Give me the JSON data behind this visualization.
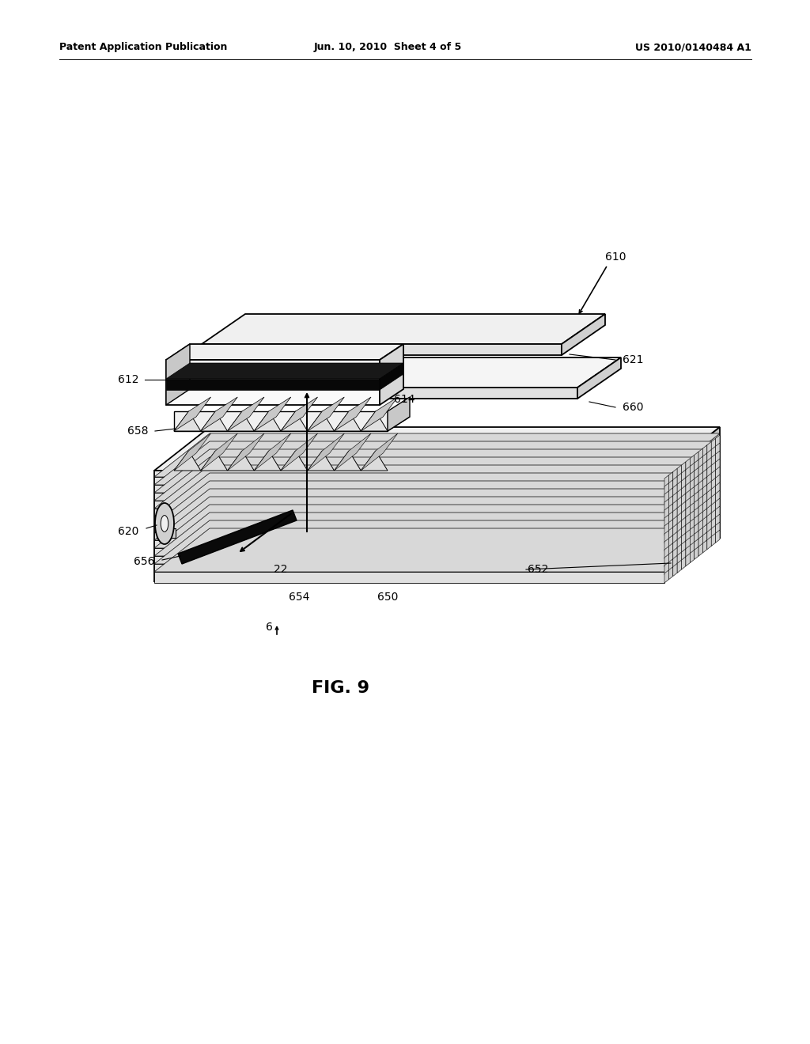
{
  "bg_color": "#ffffff",
  "header_left": "Patent Application Publication",
  "header_mid": "Jun. 10, 2010  Sheet 4 of 5",
  "header_right": "US 2010/0140484 A1",
  "fig_label": "FIG. 9",
  "label_fontsize": 10,
  "header_fontsize": 9,
  "fig_label_fontsize": 16,
  "lw_main": 1.3,
  "lw_thin": 0.7
}
